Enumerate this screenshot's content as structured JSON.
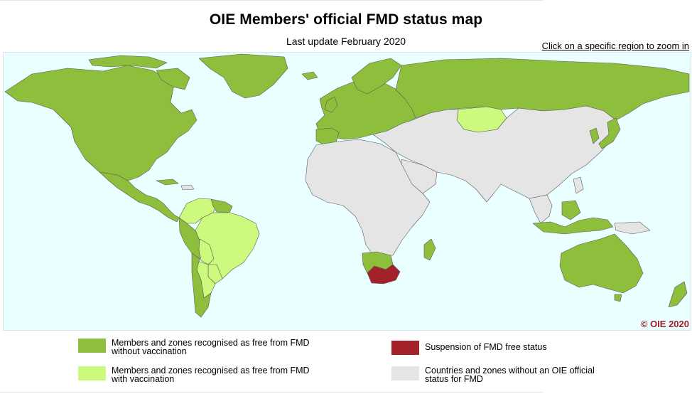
{
  "header": {
    "title": "OIE Members' official FMD status map",
    "subtitle": "Last update February 2020",
    "zoom_link": "Click on a specific region to zoom in"
  },
  "map": {
    "copyright": "© OIE 2020",
    "colors": {
      "ocean": "#eaffff",
      "free_without_vaccination": "#8dbf3c",
      "free_with_vaccination": "#ccfa7e",
      "suspended": "#a3222a",
      "no_status": "#e5e5e5",
      "border": "#5a5a5a"
    }
  },
  "legend": {
    "items": [
      {
        "key": "free_without_vaccination",
        "line1": "Members and zones recognised as free from FMD",
        "line2": "without vaccination",
        "color": "#8dbf3c"
      },
      {
        "key": "free_with_vaccination",
        "line1": "Members and zones recognised as free from FMD",
        "line2": "with vaccination",
        "color": "#ccfa7e"
      },
      {
        "key": "suspended",
        "line1": "Suspension of FMD free status",
        "line2": "",
        "color": "#a3222a"
      },
      {
        "key": "no_status",
        "line1": "Countries and zones without an OIE official",
        "line2": "status for FMD",
        "color": "#e5e5e5"
      }
    ]
  }
}
